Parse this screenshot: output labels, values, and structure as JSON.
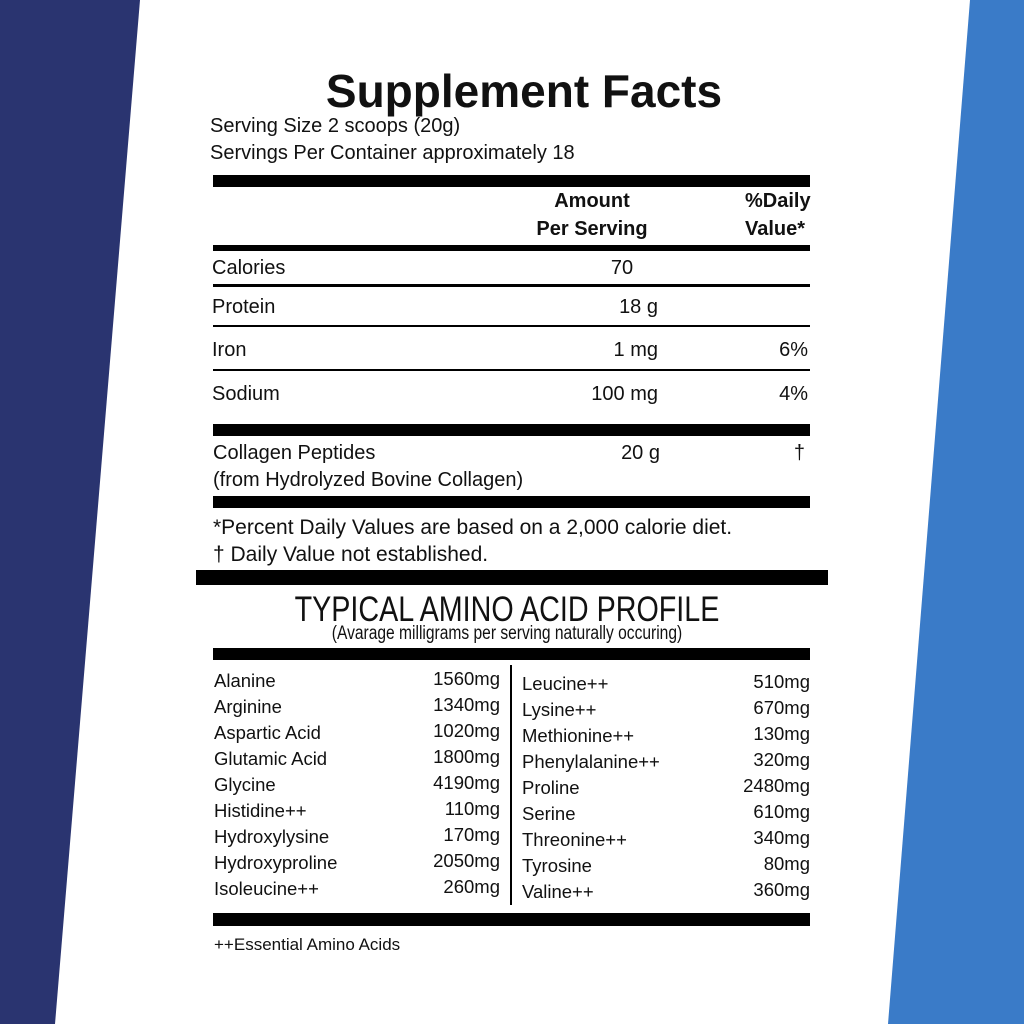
{
  "colors": {
    "left_band": "#2a3470",
    "right_band": "#3a7bc8",
    "text": "#111111"
  },
  "title": "Supplement Facts",
  "serving_size": "Serving Size 2 scoops (20g)",
  "servings_per_container": "Servings Per Container approximately 18",
  "header": {
    "amount_line1": "Amount",
    "amount_line2": "Per Serving",
    "dv_line1": "%Daily",
    "dv_line2": "Value*"
  },
  "nutrients": [
    {
      "name": "Calories",
      "amount": "70",
      "dv": ""
    },
    {
      "name": "Protein",
      "amount": "18 g",
      "dv": ""
    },
    {
      "name": "Iron",
      "amount": "1 mg",
      "dv": "6%"
    },
    {
      "name": "Sodium",
      "amount": "100 mg",
      "dv": "4%"
    }
  ],
  "collagen": {
    "name": "Collagen Peptides",
    "source": "(from Hydrolyzed Bovine Collagen)",
    "amount": "20 g",
    "dv": "†"
  },
  "footnotes": [
    "*Percent Daily Values are based on a 2,000 calorie diet.",
    "† Daily Value not established."
  ],
  "amino": {
    "title": "TYPICAL AMINO ACID PROFILE",
    "subtitle": "(Avarage milligrams per serving naturally occuring)",
    "left": [
      {
        "name": "Alanine",
        "value": "1560mg"
      },
      {
        "name": "Arginine",
        "value": "1340mg"
      },
      {
        "name": "Aspartic Acid",
        "value": "1020mg"
      },
      {
        "name": "Glutamic Acid",
        "value": "1800mg"
      },
      {
        "name": "Glycine",
        "value": "4190mg"
      },
      {
        "name": "Histidine++",
        "value": "110mg"
      },
      {
        "name": "Hydroxylysine",
        "value": "170mg"
      },
      {
        "name": "Hydroxyproline",
        "value": "2050mg"
      },
      {
        "name": "Isoleucine++",
        "value": "260mg"
      }
    ],
    "right": [
      {
        "name": "Leucine++",
        "value": "510mg"
      },
      {
        "name": "Lysine++",
        "value": "670mg"
      },
      {
        "name": "Methionine++",
        "value": "130mg"
      },
      {
        "name": "Phenylalanine++",
        "value": "320mg"
      },
      {
        "name": "Proline",
        "value": "2480mg"
      },
      {
        "name": "Serine",
        "value": "610mg"
      },
      {
        "name": "Threonine++",
        "value": "340mg"
      },
      {
        "name": "Tyrosine",
        "value": "80mg"
      },
      {
        "name": "Valine++",
        "value": "360mg"
      }
    ],
    "footnote": "++Essential Amino Acids"
  }
}
